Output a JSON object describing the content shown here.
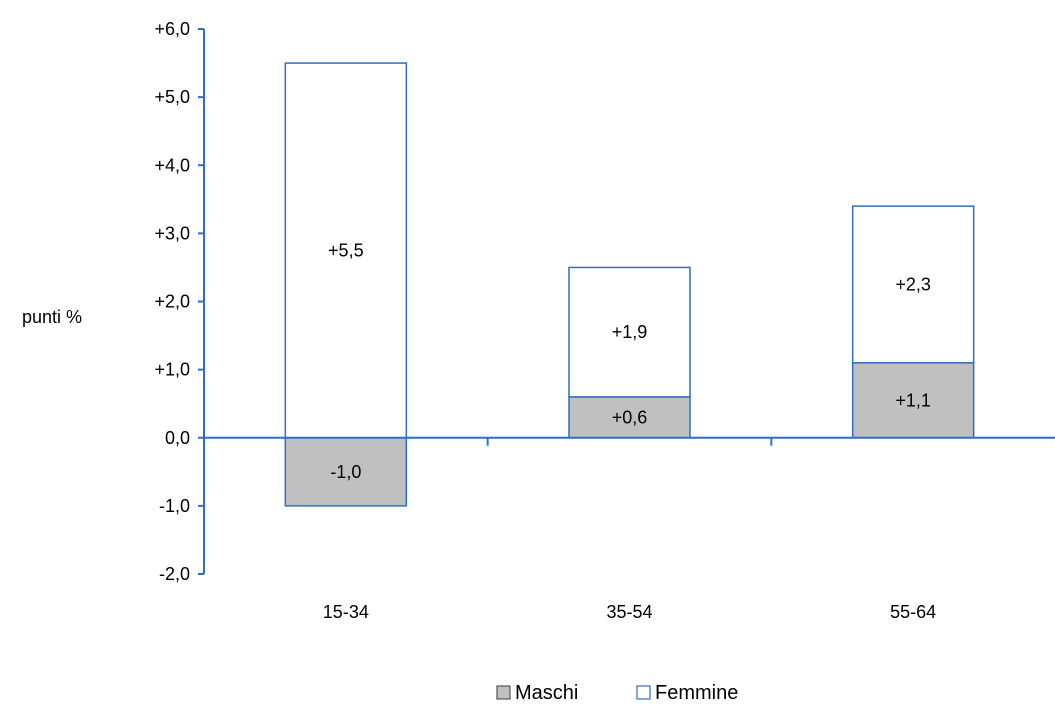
{
  "chart_data": {
    "type": "bar",
    "stacked": true,
    "title": "",
    "xlabel": "",
    "ylabel": "punti %",
    "ylim": [
      -2,
      6
    ],
    "yticks": [
      "+6,0",
      "+5,0",
      "+4,0",
      "+3,0",
      "+2,0",
      "+1,0",
      "0,0",
      "-1,0",
      "-2,0"
    ],
    "categories": [
      "15-34",
      "35-54",
      "55-64"
    ],
    "series": [
      {
        "name": "Maschi",
        "values": [
          -1.0,
          0.6,
          1.1
        ],
        "labels": [
          "-1,0",
          "+0,6",
          "+1,1"
        ],
        "color": "#c0c0c0"
      },
      {
        "name": "Femmine",
        "values": [
          5.5,
          1.9,
          2.3
        ],
        "labels": [
          "+5,5",
          "+1,9",
          "+2,3"
        ],
        "color": "#ffffff"
      }
    ],
    "grid": false,
    "legend": "bottom",
    "axis_color": "#2e6fc1",
    "bar_stroke": "#2e6fc1"
  }
}
